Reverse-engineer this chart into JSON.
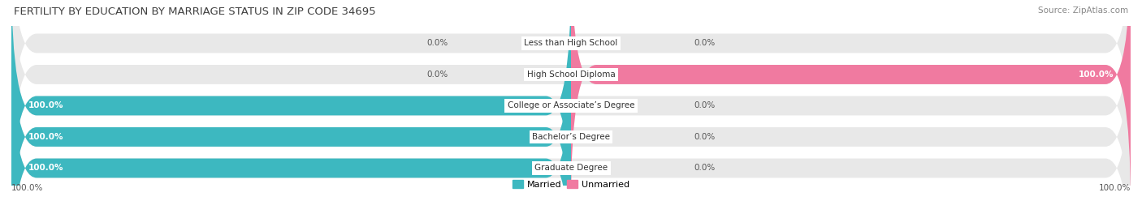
{
  "title": "FERTILITY BY EDUCATION BY MARRIAGE STATUS IN ZIP CODE 34695",
  "source": "Source: ZipAtlas.com",
  "categories": [
    "Less than High School",
    "High School Diploma",
    "College or Associate’s Degree",
    "Bachelor’s Degree",
    "Graduate Degree"
  ],
  "married_pct": [
    0.0,
    0.0,
    100.0,
    100.0,
    100.0
  ],
  "unmarried_pct": [
    0.0,
    100.0,
    0.0,
    0.0,
    0.0
  ],
  "married_color": "#3db8c0",
  "unmarried_color": "#f07aa0",
  "bar_bg_color": "#e8e8e8",
  "bar_height": 0.62,
  "legend_married": "Married",
  "legend_unmarried": "Unmarried",
  "title_fontsize": 9.5,
  "source_fontsize": 7.5,
  "label_fontsize": 7.5,
  "cat_fontsize": 7.5,
  "tick_fontsize": 7.5,
  "fig_width": 14.06,
  "fig_height": 2.69,
  "dpi": 100
}
